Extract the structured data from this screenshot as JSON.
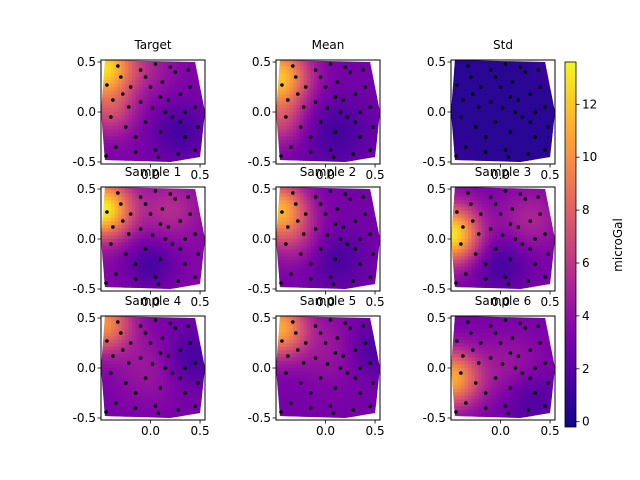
{
  "chart_data": {
    "type": "contour-map-grid",
    "panels": [
      {
        "title": "Target",
        "field": "target"
      },
      {
        "title": "Mean",
        "field": "mean"
      },
      {
        "title": "Std",
        "field": "std"
      },
      {
        "title": "Sample 1",
        "field": "s1"
      },
      {
        "title": "Sample 2",
        "field": "s2"
      },
      {
        "title": "Sample 3",
        "field": "s3"
      },
      {
        "title": "Sample 4",
        "field": "s4"
      },
      {
        "title": "Sample 5",
        "field": "s5"
      },
      {
        "title": "Sample 6",
        "field": "s6"
      }
    ],
    "xlim": [
      -0.5,
      0.55
    ],
    "ylim": [
      -0.52,
      0.52
    ],
    "xticks": [
      "0.0",
      "0.5"
    ],
    "yticks": [
      "0.5",
      "0.0",
      "-0.5"
    ],
    "xtick_values": [
      0.0,
      0.5
    ],
    "ytick_values": [
      0.5,
      0.0,
      -0.5
    ],
    "hull": [
      [
        -0.46,
        0.52
      ],
      [
        0.45,
        0.5
      ],
      [
        0.55,
        0.0
      ],
      [
        0.5,
        -0.45
      ],
      [
        0.2,
        -0.5
      ],
      [
        -0.46,
        -0.48
      ],
      [
        -0.5,
        0.0
      ]
    ],
    "colorbar": {
      "label": "microGal",
      "ticks": [
        "0",
        "2",
        "4",
        "6",
        "8",
        "10",
        "12"
      ],
      "tick_values": [
        0,
        2,
        4,
        6,
        8,
        10,
        12
      ],
      "range": [
        -0.2,
        13.6
      ],
      "colormap": "plasma"
    },
    "stations": [
      [
        -0.44,
        0.27
      ],
      [
        -0.33,
        0.46
      ],
      [
        -0.28,
        0.18
      ],
      [
        -0.1,
        0.42
      ],
      [
        0.05,
        0.48
      ],
      [
        0.12,
        0.3
      ],
      [
        0.25,
        0.4
      ],
      [
        0.38,
        0.42
      ],
      [
        -0.22,
        0.05
      ],
      [
        -0.1,
        0.1
      ],
      [
        0.02,
        0.04
      ],
      [
        0.18,
        0.12
      ],
      [
        0.3,
        0.18
      ],
      [
        0.45,
        0.05
      ],
      [
        -0.4,
        -0.05
      ],
      [
        -0.25,
        -0.15
      ],
      [
        -0.05,
        -0.1
      ],
      [
        0.1,
        -0.2
      ],
      [
        0.22,
        -0.05
      ],
      [
        0.35,
        -0.25
      ],
      [
        -0.35,
        -0.35
      ],
      [
        -0.15,
        -0.4
      ],
      [
        0.05,
        -0.38
      ],
      [
        0.28,
        -0.42
      ],
      [
        0.45,
        -0.38
      ],
      [
        -0.45,
        -0.44
      ],
      [
        0.15,
        0.0
      ],
      [
        -0.3,
        0.35
      ],
      [
        0.0,
        0.25
      ],
      [
        0.4,
        0.25
      ],
      [
        -0.15,
        -0.25
      ],
      [
        0.3,
        -0.1
      ],
      [
        -0.38,
        0.12
      ],
      [
        0.08,
        -0.45
      ],
      [
        0.2,
        0.45
      ],
      [
        -0.05,
        0.35
      ],
      [
        0.48,
        -0.15
      ],
      [
        -0.2,
        0.25
      ],
      [
        0.1,
        0.15
      ],
      [
        0.35,
        0.0
      ]
    ]
  }
}
